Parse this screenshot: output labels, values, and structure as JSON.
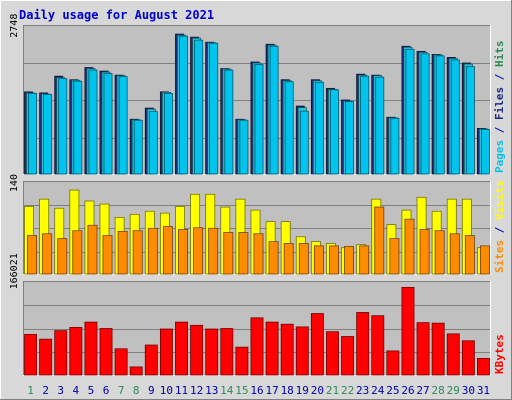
{
  "chart_data": {
    "type": "bar",
    "title": "Daily usage for August 2021",
    "colors": {
      "title": "#0000cc",
      "pages": "#1e2a7a",
      "files": "#27c3dc",
      "hits": "#00c4ee",
      "visits": "#ffff00",
      "sites": "#ff8c00",
      "kbytes": "#ff0000",
      "weekend_day": "#2e8b57",
      "weekday": "#0000aa",
      "panel_bg": "#c0c0c0",
      "frame_bg": "#d8d8d8"
    },
    "categories": [
      "1",
      "2",
      "3",
      "4",
      "5",
      "6",
      "7",
      "8",
      "9",
      "10",
      "11",
      "12",
      "13",
      "14",
      "15",
      "16",
      "17",
      "18",
      "19",
      "20",
      "21",
      "22",
      "23",
      "24",
      "25",
      "26",
      "27",
      "28",
      "29",
      "30",
      "31"
    ],
    "weekend_days": [
      "1",
      "7",
      "8",
      "14",
      "15",
      "21",
      "22",
      "28",
      "29"
    ],
    "panels": [
      {
        "id": "hits",
        "axis_max_label": "2748",
        "ymax": 2748,
        "ylim": [
          0,
          2960
        ],
        "legend": [
          {
            "name": "Pages",
            "color": "#00c4ee"
          },
          {
            "name": "Files",
            "color": "#1e2a7a"
          },
          {
            "name": "Hits",
            "color": "#2e8b57"
          }
        ],
        "legend_separator": " / ",
        "series": [
          {
            "name": "Pages",
            "values": [
              1640,
              1620,
              1950,
              1880,
              2120,
              2050,
              1970,
              1100,
              1320,
              1640,
              2780,
              2720,
              2620,
              2100,
              1100,
              2230,
              2580,
              1880,
              1360,
              1880,
              1710,
              1480,
              1990,
              1970,
              1140,
              2540,
              2440,
              2380,
              2320,
              2210,
              920
            ]
          },
          {
            "name": "Files",
            "values": [
              1620,
              1600,
              1920,
              1870,
              2100,
              2030,
              1960,
              1090,
              1300,
              1630,
              2760,
              2700,
              2610,
              2090,
              1090,
              2210,
              2560,
              1860,
              1330,
              1860,
              1690,
              1460,
              1970,
              1960,
              1130,
              2520,
              2420,
              2370,
              2300,
              2190,
              910
            ]
          },
          {
            "name": "Hits",
            "values": [
              1610,
              1590,
              1900,
              1850,
              2070,
              2000,
              1940,
              1080,
              1250,
              1610,
              2740,
              2660,
              2600,
              2070,
              1080,
              2180,
              2540,
              1840,
              1260,
              1830,
              1680,
              1450,
              1950,
              1930,
              1120,
              2480,
              2390,
              2350,
              2270,
              2140,
              900
            ]
          }
        ]
      },
      {
        "id": "visits",
        "axis_max_label": "140",
        "ymax": 140,
        "ylim": [
          0,
          155
        ],
        "legend": [
          {
            "name": "Sites",
            "color": "#ff8c00"
          },
          {
            "name": "Visits",
            "color": "#ffff00"
          }
        ],
        "legend_separator": " / ",
        "series": [
          {
            "name": "Visits",
            "values": [
              113,
              125,
              110,
              140,
              122,
              117,
              95,
              100,
              105,
              102,
              113,
              133,
              133,
              112,
              125,
              107,
              88,
              88,
              63,
              55,
              52,
              45,
              50,
              125,
              83,
              107,
              128,
              105,
              125,
              125,
              45
            ]
          },
          {
            "name": "Sites",
            "values": [
              65,
              68,
              60,
              73,
              82,
              65,
              72,
              73,
              77,
              80,
              75,
              78,
              77,
              70,
              70,
              68,
              55,
              52,
              52,
              48,
              48,
              47,
              48,
              112,
              60,
              92,
              75,
              73,
              68,
              65,
              48
            ]
          }
        ]
      },
      {
        "id": "kbytes",
        "axis_max_label": "166021",
        "ymax": 166021,
        "ylim": [
          0,
          178000
        ],
        "legend": [
          {
            "name": "KBytes",
            "color": "#ff0000"
          }
        ],
        "legend_separator": "",
        "series": [
          {
            "name": "KBytes",
            "values": [
              78000,
              69000,
              85000,
              91000,
              101000,
              89000,
              51000,
              17000,
              58000,
              88000,
              101000,
              95000,
              88000,
              89000,
              54000,
              109000,
              101000,
              97000,
              92000,
              117000,
              83000,
              74000,
              119000,
              113000,
              47000,
              166021,
              100000,
              99000,
              79000,
              66000,
              33000
            ]
          }
        ]
      }
    ]
  }
}
